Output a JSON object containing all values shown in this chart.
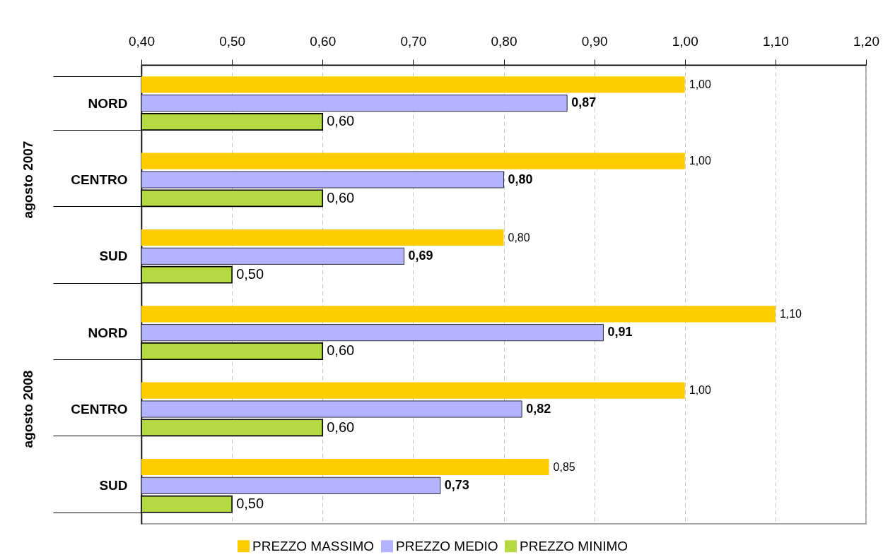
{
  "chart_data": {
    "type": "bar",
    "orientation": "horizontal",
    "categories": [
      "NORD",
      "CENTRO",
      "SUD",
      "NORD",
      "CENTRO",
      "SUD"
    ],
    "annotations": [
      "agosto 2007",
      "agosto 2008"
    ],
    "series": [
      {
        "name": "PREZZO MASSIMO",
        "color": "#ffcc00",
        "values": [
          1.0,
          1.0,
          0.8,
          1.1,
          1.0,
          0.85
        ],
        "value_labels": [
          "1,00",
          "1,00",
          "0,80",
          "1,10",
          "1,00",
          "0,85"
        ]
      },
      {
        "name": "PREZZO MEDIO",
        "color": "#b3b3ff",
        "values": [
          0.87,
          0.8,
          0.69,
          0.91,
          0.82,
          0.73
        ],
        "value_labels": [
          "0,87",
          "0,80",
          "0,69",
          "0,91",
          "0,82",
          "0,73"
        ]
      },
      {
        "name": "PREZZO MINIMO",
        "color": "#b5d940",
        "values": [
          0.6,
          0.6,
          0.5,
          0.6,
          0.6,
          0.5
        ],
        "value_labels": [
          "0,60",
          "0,60",
          "0,50",
          "0,60",
          "0,60",
          "0,50"
        ]
      }
    ],
    "xlim": [
      0.4,
      1.2
    ],
    "xticks": [
      {
        "value": 0.4,
        "label": "0,40"
      },
      {
        "value": 0.5,
        "label": "0,50"
      },
      {
        "value": 0.6,
        "label": "0,60"
      },
      {
        "value": 0.7,
        "label": "0,70"
      },
      {
        "value": 0.8,
        "label": "0,80"
      },
      {
        "value": 0.9,
        "label": "0,90"
      },
      {
        "value": 1.0,
        "label": "1,00"
      },
      {
        "value": 1.1,
        "label": "1,10"
      },
      {
        "value": 1.2,
        "label": "1,20"
      }
    ],
    "grid": "x",
    "legend": "bottom"
  }
}
